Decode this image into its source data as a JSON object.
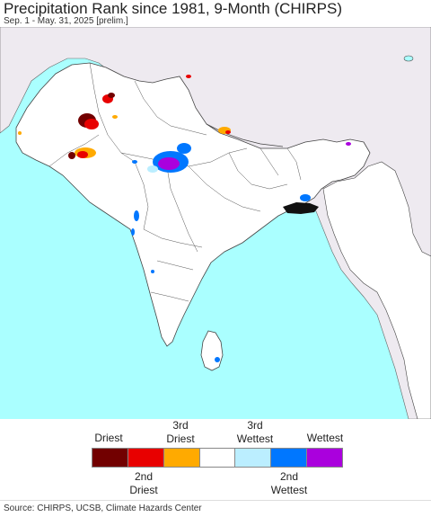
{
  "header": {
    "title": "Precipitation Rank since 1981, 9-Month (CHIRPS)",
    "subtitle": "Sep. 1 - May. 31, 2025 [prelim.]"
  },
  "map": {
    "colors": {
      "ocean": "#aaffff",
      "land_outside": "#eeeaf0",
      "land_region": "#ffffff",
      "border": "#444444",
      "dark_area": "#111111"
    }
  },
  "legend": {
    "top_labels": [
      "Driest",
      "3rd\nDriest",
      "3rd\nWettest",
      "Wettest"
    ],
    "bottom_labels": [
      "2nd\nDriest",
      "2nd\nWettest"
    ],
    "swatches": [
      "#720000",
      "#e80000",
      "#ffaa00",
      "#ffffff",
      "#bbeeff",
      "#0077ff",
      "#aa00dd"
    ]
  },
  "footer": {
    "source": "Source: CHIRPS, UCSB, Climate Hazards Center"
  }
}
